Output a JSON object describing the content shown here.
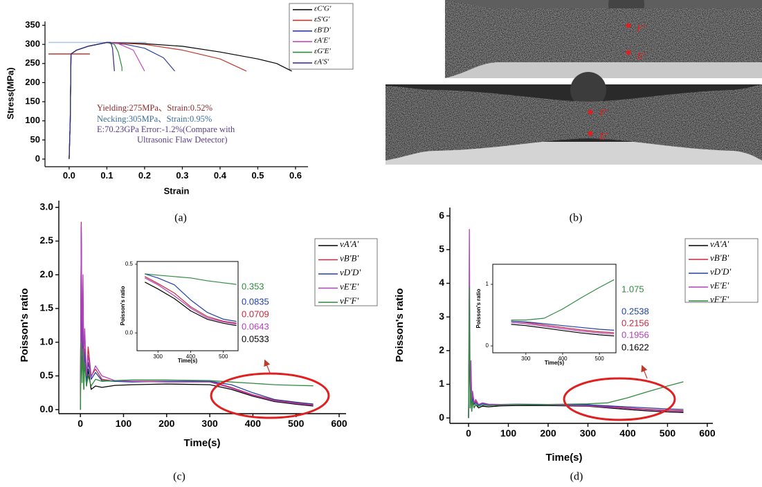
{
  "chart_data": [
    {
      "type": "line",
      "xlabel": "Strain",
      "ylabel": "Stress(MPa)",
      "xlim": [
        -0.064,
        0.633
      ],
      "ylim": [
        -20,
        360
      ],
      "xticks": [
        {
          "value": 0,
          "label": "0.0"
        },
        0.1,
        0.2,
        0.3,
        0.4,
        0.5,
        0.6
      ],
      "yticks": [
        0,
        50,
        100,
        150,
        200,
        250,
        300,
        350
      ],
      "legend": "right",
      "series": [
        {
          "name": "εC'G'",
          "color": "#000000",
          "x": [
            0,
            0.003,
            0.005,
            0.02,
            0.05,
            0.1,
            0.2,
            0.3,
            0.4,
            0.5,
            0.55,
            0.59
          ],
          "values": [
            0,
            100,
            275,
            285,
            295,
            305,
            302,
            295,
            280,
            262,
            250,
            230
          ]
        },
        {
          "name": "εS'G'",
          "color": "#c0392b",
          "x": [
            0,
            0.003,
            0.005,
            0.02,
            0.05,
            0.1,
            0.2,
            0.3,
            0.4,
            0.47
          ],
          "values": [
            0,
            100,
            275,
            285,
            295,
            305,
            300,
            285,
            262,
            230
          ]
        },
        {
          "name": "εB'D'",
          "color": "#2c3e9e",
          "x": [
            0,
            0.003,
            0.005,
            0.02,
            0.05,
            0.1,
            0.15,
            0.2,
            0.25,
            0.28
          ],
          "values": [
            0,
            100,
            275,
            285,
            295,
            305,
            300,
            290,
            265,
            230
          ]
        },
        {
          "name": "εA'E'",
          "color": "#c04cc0",
          "x": [
            0,
            0.003,
            0.005,
            0.02,
            0.05,
            0.1,
            0.13,
            0.17,
            0.2
          ],
          "values": [
            0,
            100,
            275,
            285,
            295,
            305,
            302,
            285,
            230
          ]
        },
        {
          "name": "εG'E'",
          "color": "#2e8b3e",
          "x": [
            0,
            0.003,
            0.005,
            0.02,
            0.05,
            0.1,
            0.12,
            0.13,
            0.14,
            0.14
          ],
          "values": [
            0,
            100,
            275,
            285,
            295,
            305,
            300,
            280,
            240,
            230
          ]
        },
        {
          "name": "εA'S'",
          "color": "#2a2a7a",
          "x": [
            0,
            0.003,
            0.005,
            0.02,
            0.05,
            0.1,
            0.11,
            0.115,
            0.12
          ],
          "values": [
            0,
            100,
            275,
            285,
            295,
            305,
            305,
            290,
            230
          ]
        }
      ],
      "reference_lines": [
        {
          "y": 305,
          "x": [
            -0.055,
            0.205
          ],
          "color": "#a8c8e0"
        },
        {
          "y": 275,
          "x": [
            -0.055,
            0.055
          ],
          "color": "#c0392b"
        }
      ],
      "annotations": [
        "Yielding:275MPa、Strain:0.52%",
        "Necking:305MPa、Strain:0.95%",
        "E:70.23GPa Error:-1.2%(Compare with",
        "Ultrasonic Flaw Detector)"
      ]
    },
    {
      "type": "line",
      "xlabel": "Time(s)",
      "ylabel": "Poisson's ratio",
      "xlim": [
        -50,
        616
      ],
      "ylim": [
        -0.06,
        3.1
      ],
      "xticks": [
        0,
        100,
        200,
        300,
        400,
        500,
        600
      ],
      "yticks": [
        {
          "value": 0,
          "label": "0.0"
        },
        0.5,
        {
          "value": 1,
          "label": "1.0"
        },
        1.5,
        {
          "value": 2,
          "label": "2.0"
        },
        2.5,
        {
          "value": 3,
          "label": "3.0"
        }
      ],
      "legend": "right",
      "x": [
        0,
        2,
        4,
        6,
        8,
        10,
        14,
        18,
        25,
        35,
        50,
        80,
        120,
        200,
        300,
        350,
        400,
        450,
        500,
        540
      ],
      "series": [
        {
          "name": "νA'A'",
          "color": "#000000",
          "values": [
            0,
            2.6,
            0.5,
            1.4,
            0.3,
            0.8,
            0.35,
            0.6,
            0.3,
            0.35,
            0.33,
            0.36,
            0.37,
            0.38,
            0.37,
            0.3,
            0.2,
            0.12,
            0.08,
            0.0533
          ]
        },
        {
          "name": "νB'B'",
          "color": "#c8283c",
          "values": [
            0,
            2.78,
            0.7,
            1.8,
            0.5,
            0.9,
            0.45,
            0.93,
            0.5,
            0.6,
            0.45,
            0.42,
            0.42,
            0.42,
            0.42,
            0.33,
            0.22,
            0.14,
            0.1,
            0.0709
          ]
        },
        {
          "name": "νD'D'",
          "color": "#2040a8",
          "values": [
            0,
            2.7,
            0.6,
            1.6,
            0.4,
            0.85,
            0.4,
            0.7,
            0.45,
            0.55,
            0.43,
            0.42,
            0.41,
            0.42,
            0.42,
            0.37,
            0.25,
            0.15,
            0.11,
            0.0835
          ]
        },
        {
          "name": "νE'E'",
          "color": "#b040b8",
          "values": [
            0,
            2.75,
            0.8,
            2.0,
            0.6,
            1.2,
            0.5,
            0.8,
            0.48,
            0.65,
            0.5,
            0.43,
            0.42,
            0.41,
            0.41,
            0.32,
            0.21,
            0.13,
            0.09,
            0.0643
          ]
        },
        {
          "name": "νF'F'",
          "color": "#2e8b3e",
          "values": [
            0,
            1.0,
            0.4,
            0.9,
            0.3,
            0.7,
            0.35,
            0.5,
            0.35,
            0.45,
            0.42,
            0.43,
            0.44,
            0.44,
            0.43,
            0.41,
            0.39,
            0.37,
            0.36,
            0.353
          ]
        }
      ],
      "inset": {
        "type": "line",
        "xlabel": "Time(s)",
        "ylabel": "Poisson's ratio",
        "xlim": [
          236,
          545
        ],
        "ylim": [
          -0.13,
          0.52
        ],
        "xticks": [
          300,
          400,
          500
        ],
        "yticks": [
          {
            "value": 0,
            "label": "0.0"
          },
          0.5
        ],
        "x": [
          260,
          300,
          350,
          400,
          450,
          500,
          540
        ],
        "series": [
          {
            "values": [
              0.37,
              0.32,
              0.25,
              0.16,
              0.1,
              0.07,
              0.0533
            ]
          },
          {
            "values": [
              0.41,
              0.36,
              0.29,
              0.19,
              0.12,
              0.085,
              0.0709
            ]
          },
          {
            "values": [
              0.43,
              0.4,
              0.35,
              0.24,
              0.15,
              0.1,
              0.0835
            ]
          },
          {
            "values": [
              0.4,
              0.35,
              0.27,
              0.18,
              0.11,
              0.08,
              0.0643
            ]
          },
          {
            "values": [
              0.43,
              0.42,
              0.41,
              0.4,
              0.38,
              0.365,
              0.353
            ]
          }
        ]
      }
    },
    {
      "type": "line",
      "xlabel": "Time(s)",
      "ylabel": "Poisson's ratio",
      "xlim": [
        -47,
        614
      ],
      "ylim": [
        -0.16,
        6.25
      ],
      "xticks": [
        0,
        100,
        200,
        300,
        400,
        500,
        600
      ],
      "yticks": [
        0,
        1,
        2,
        3,
        4,
        5,
        6
      ],
      "legend": "right",
      "x": [
        0,
        2,
        4,
        6,
        8,
        10,
        14,
        18,
        25,
        35,
        50,
        80,
        120,
        200,
        300,
        350,
        400,
        450,
        500,
        540
      ],
      "series": [
        {
          "name": "νA'A'",
          "color": "#000000",
          "values": [
            0,
            3.0,
            0.3,
            1.0,
            0.2,
            0.5,
            0.3,
            0.4,
            0.3,
            0.35,
            0.33,
            0.36,
            0.37,
            0.37,
            0.35,
            0.3,
            0.25,
            0.21,
            0.18,
            0.1622
          ]
        },
        {
          "name": "νB'B'",
          "color": "#c8283c",
          "values": [
            0,
            3.5,
            0.5,
            1.4,
            0.4,
            0.7,
            0.4,
            0.5,
            0.38,
            0.42,
            0.4,
            0.4,
            0.4,
            0.4,
            0.38,
            0.34,
            0.3,
            0.26,
            0.23,
            0.2156
          ]
        },
        {
          "name": "νD'D'",
          "color": "#2040a8",
          "values": [
            0,
            4.0,
            0.4,
            1.2,
            0.35,
            0.6,
            0.4,
            0.45,
            0.38,
            0.42,
            0.4,
            0.4,
            0.41,
            0.4,
            0.39,
            0.36,
            0.33,
            0.3,
            0.27,
            0.2538
          ]
        },
        {
          "name": "νE'E'",
          "color": "#b040b8",
          "values": [
            0,
            5.6,
            0.6,
            1.7,
            0.5,
            0.8,
            0.45,
            0.55,
            0.4,
            0.45,
            0.41,
            0.4,
            0.4,
            0.39,
            0.36,
            0.32,
            0.28,
            0.24,
            0.21,
            0.1956
          ]
        },
        {
          "name": "νF'F'",
          "color": "#2e8b3e",
          "values": [
            0,
            3.9,
            0.3,
            0.8,
            0.2,
            0.5,
            0.3,
            0.4,
            0.35,
            0.38,
            0.37,
            0.38,
            0.39,
            0.4,
            0.42,
            0.45,
            0.6,
            0.78,
            0.95,
            1.075
          ]
        }
      ],
      "inset": {
        "type": "line",
        "xlabel": "Time(s)",
        "ylabel": "Poisson's ratio",
        "xlim": [
          210,
          545
        ],
        "ylim": [
          -0.112,
          1.326
        ],
        "xticks": [
          300,
          400,
          500
        ],
        "yticks": [
          0,
          1
        ],
        "x": [
          260,
          300,
          350,
          400,
          450,
          500,
          540
        ],
        "series": [
          {
            "values": [
              0.35,
              0.33,
              0.29,
              0.25,
              0.21,
              0.18,
              0.1622
            ]
          },
          {
            "values": [
              0.4,
              0.38,
              0.34,
              0.3,
              0.26,
              0.23,
              0.2156
            ]
          },
          {
            "values": [
              0.4,
              0.39,
              0.36,
              0.33,
              0.3,
              0.27,
              0.2538
            ]
          },
          {
            "values": [
              0.38,
              0.36,
              0.32,
              0.28,
              0.24,
              0.21,
              0.1956
            ]
          },
          {
            "values": [
              0.42,
              0.42,
              0.45,
              0.6,
              0.78,
              0.95,
              1.075
            ]
          }
        ]
      }
    }
  ],
  "photo": {
    "markers": [
      [
        "F'",
        "E'"
      ],
      [
        "F'",
        "E'"
      ]
    ]
  },
  "panel_labels": [
    "(a)",
    "(b)",
    "(c)",
    "(d)"
  ]
}
